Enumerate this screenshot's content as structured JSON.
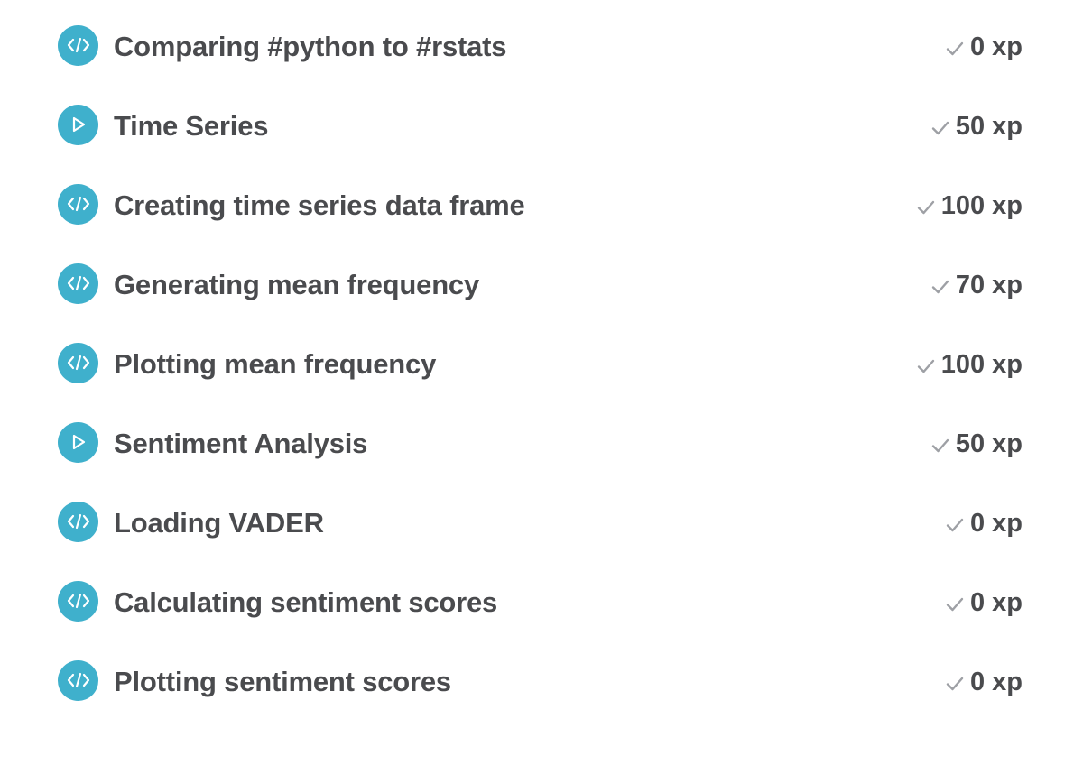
{
  "colors": {
    "icon_background": "#3fb0cc",
    "icon_glyph": "#ffffff",
    "title_text": "#4a4b4e",
    "check_mark": "#9ea0a5"
  },
  "exercises": [
    {
      "icon": "code-icon",
      "title": "Comparing #python to #rstats",
      "xp": "0 xp"
    },
    {
      "icon": "video-play-icon",
      "title": "Time Series",
      "xp": "50 xp"
    },
    {
      "icon": "code-icon",
      "title": "Creating time series data frame",
      "xp": "100 xp"
    },
    {
      "icon": "code-icon",
      "title": "Generating mean frequency",
      "xp": "70 xp"
    },
    {
      "icon": "code-icon",
      "title": "Plotting mean frequency",
      "xp": "100 xp"
    },
    {
      "icon": "video-play-icon",
      "title": "Sentiment Analysis",
      "xp": "50 xp"
    },
    {
      "icon": "code-icon",
      "title": "Loading VADER",
      "xp": "0 xp"
    },
    {
      "icon": "code-icon",
      "title": "Calculating sentiment scores",
      "xp": "0 xp"
    },
    {
      "icon": "code-icon",
      "title": "Plotting sentiment scores",
      "xp": "0 xp"
    }
  ]
}
